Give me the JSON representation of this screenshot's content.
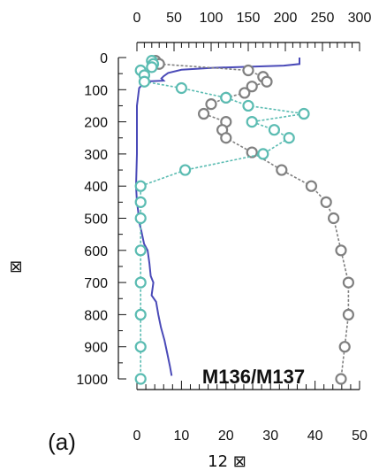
{
  "chart_data": {
    "type": "line",
    "title": "",
    "panel_label": "(a)",
    "annotation": "M136/M137",
    "ylabel": "⊠",
    "xlabel_bottom": "12 ⊠",
    "xlabel_top": "",
    "y_axis": {
      "range": [
        0,
        1000
      ],
      "inverted": true,
      "ticks": [
        0,
        100,
        200,
        300,
        400,
        500,
        600,
        700,
        800,
        900,
        1000
      ],
      "tick_labels": [
        "0",
        "100",
        "200",
        "300",
        "400",
        "500",
        "600",
        "700",
        "800",
        "900",
        "1000"
      ]
    },
    "x_axis_bottom": {
      "range": [
        0,
        50
      ],
      "ticks": [
        0,
        10,
        20,
        30,
        40,
        50
      ],
      "tick_labels": [
        "0",
        "10",
        "20",
        "30",
        "40",
        "50"
      ]
    },
    "x_axis_top": {
      "range": [
        0,
        300
      ],
      "ticks": [
        0,
        50,
        100,
        150,
        200,
        250,
        300
      ],
      "tick_labels": [
        "0",
        "50",
        "100",
        "150",
        "200",
        "250",
        "300"
      ]
    },
    "grid": false,
    "series": [
      {
        "axis": "bottom",
        "color": "#4a4ab8",
        "style": "solid",
        "marker": "none",
        "points": [
          [
            36.5,
            0
          ],
          [
            36.5,
            20
          ],
          [
            33,
            25
          ],
          [
            26,
            28
          ],
          [
            17,
            32
          ],
          [
            10,
            38
          ],
          [
            7,
            48
          ],
          [
            6,
            58
          ],
          [
            5.5,
            65
          ],
          [
            6,
            72
          ],
          [
            2.5,
            74
          ],
          [
            1.5,
            80
          ],
          [
            0.5,
            95
          ],
          [
            0,
            150
          ],
          [
            0,
            300
          ],
          [
            -0.2,
            400
          ],
          [
            0,
            450
          ],
          [
            0.3,
            480
          ],
          [
            0.3,
            500
          ],
          [
            1,
            540
          ],
          [
            1.6,
            580
          ],
          [
            2.4,
            600
          ],
          [
            2.8,
            640
          ],
          [
            3.1,
            680
          ],
          [
            3.7,
            700
          ],
          [
            3.3,
            740
          ],
          [
            4.3,
            760
          ],
          [
            4.8,
            800
          ],
          [
            5.4,
            840
          ],
          [
            6.2,
            880
          ],
          [
            6.8,
            920
          ],
          [
            7.4,
            960
          ],
          [
            7.8,
            990
          ]
        ]
      },
      {
        "axis": "top",
        "color": "#808080",
        "style": "dashed",
        "marker": "circle",
        "points": [
          [
            25,
            10
          ],
          [
            30,
            20
          ],
          [
            150,
            40
          ],
          [
            170,
            60
          ],
          [
            175,
            75
          ],
          [
            155,
            90
          ],
          [
            145,
            110
          ],
          [
            120,
            125
          ],
          [
            100,
            145
          ],
          [
            90,
            175
          ],
          [
            120,
            200
          ],
          [
            115,
            225
          ],
          [
            120,
            250
          ],
          [
            155,
            295
          ],
          [
            195,
            350
          ],
          [
            235,
            400
          ],
          [
            255,
            450
          ],
          [
            265,
            500
          ],
          [
            275,
            600
          ],
          [
            285,
            700
          ],
          [
            285,
            800
          ],
          [
            280,
            900
          ],
          [
            275,
            1000
          ]
        ]
      },
      {
        "axis": "top",
        "color": "#5bbcb2",
        "style": "dashed",
        "marker": "circle",
        "points": [
          [
            20,
            10
          ],
          [
            22,
            20
          ],
          [
            20,
            30
          ],
          [
            5,
            40
          ],
          [
            10,
            55
          ],
          [
            10,
            75
          ],
          [
            60,
            95
          ],
          [
            120,
            125
          ],
          [
            150,
            150
          ],
          [
            225,
            175
          ],
          [
            155,
            200
          ],
          [
            185,
            225
          ],
          [
            205,
            250
          ],
          [
            170,
            300
          ],
          [
            65,
            350
          ],
          [
            5,
            400
          ],
          [
            5,
            450
          ],
          [
            5,
            500
          ],
          [
            5,
            600
          ],
          [
            5,
            700
          ],
          [
            5,
            800
          ],
          [
            5,
            900
          ],
          [
            5,
            1000
          ]
        ]
      }
    ]
  }
}
